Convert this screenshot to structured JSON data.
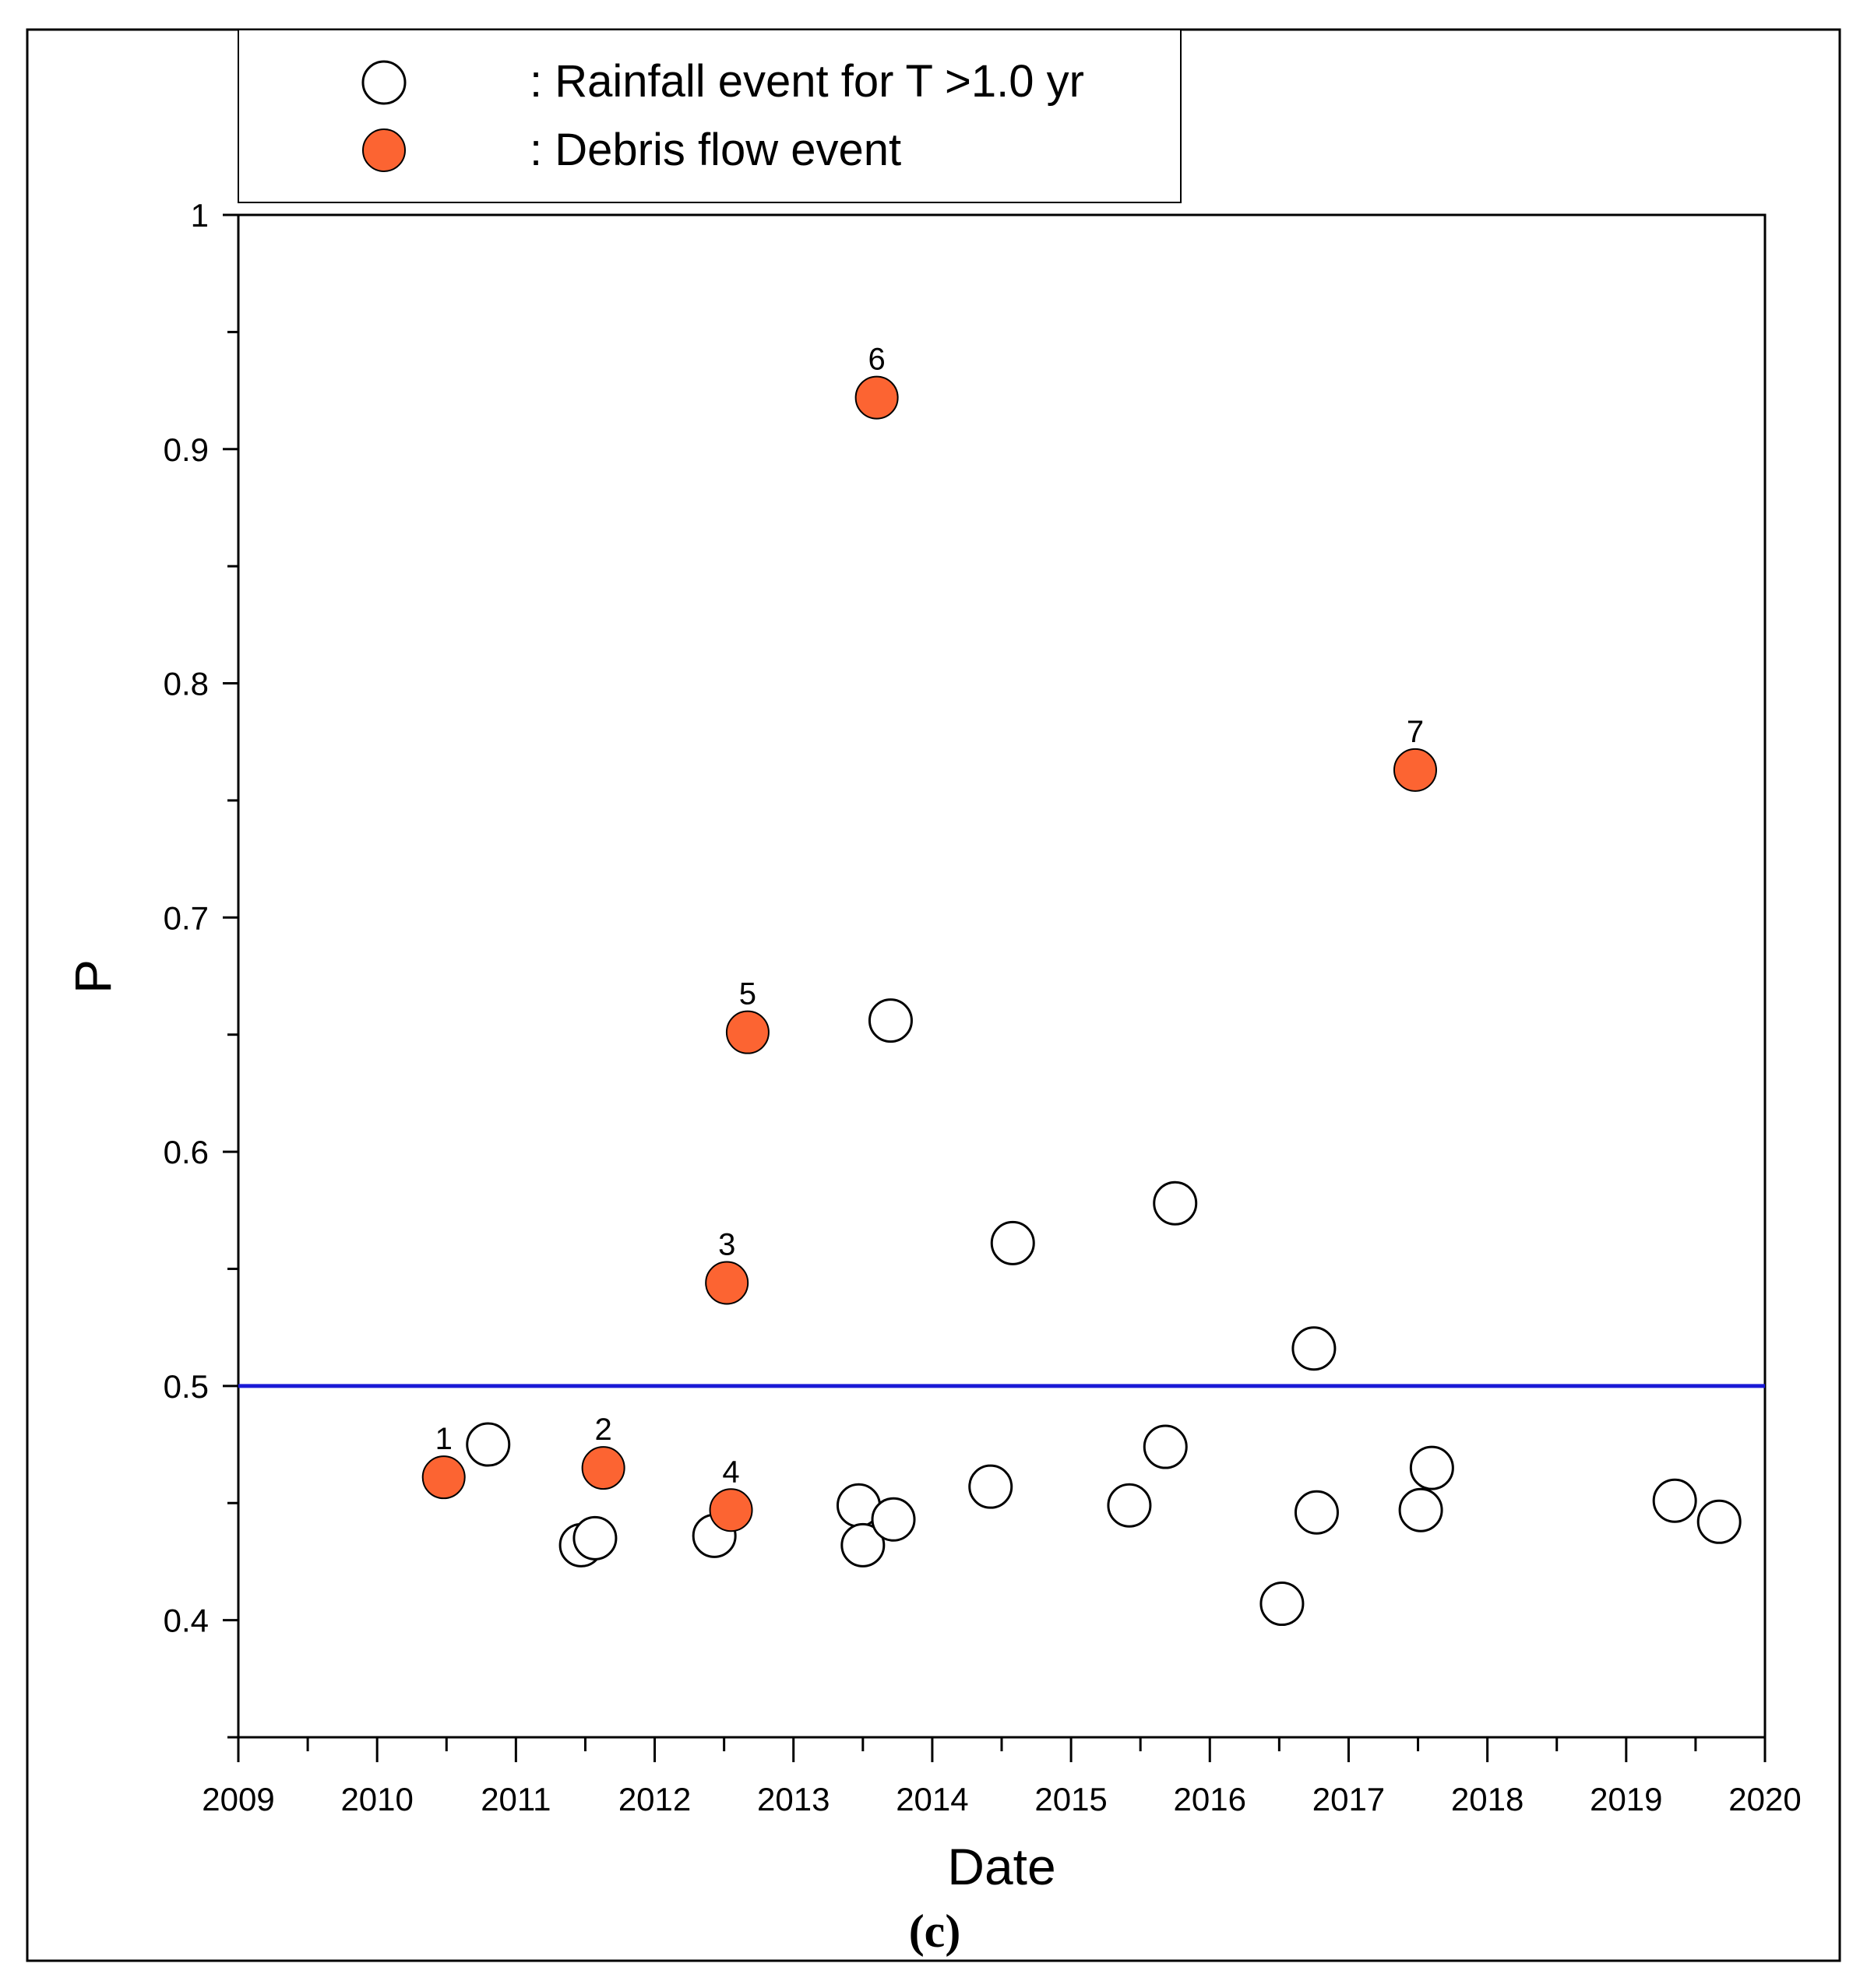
{
  "chart_data": {
    "type": "scatter",
    "panel_label": "(c)",
    "xlabel": "Date",
    "ylabel": "P",
    "xlim": [
      2009,
      2020
    ],
    "ylim": [
      0.35,
      1.0
    ],
    "x_ticks": [
      2009,
      2010,
      2011,
      2012,
      2013,
      2014,
      2015,
      2016,
      2017,
      2018,
      2019,
      2020
    ],
    "x_tick_labels": [
      "2009",
      "2010",
      "2011",
      "2012",
      "2013",
      "2014",
      "2015",
      "2016",
      "2017",
      "2018",
      "2019",
      "2020"
    ],
    "y_ticks": [
      0.4,
      0.5,
      0.6,
      0.7,
      0.8,
      0.9,
      1.0
    ],
    "y_tick_labels": [
      "0.4",
      "0.5",
      "0.6",
      "0.7",
      "0.8",
      "0.9",
      "1"
    ],
    "threshold": {
      "y": 0.5,
      "color": "#1a1ad6"
    },
    "legend": {
      "position": "top-left, above plot",
      "entries": [
        {
          "marker": "open-circle",
          "label": ": Rainfall event for  T >1.0 yr"
        },
        {
          "marker": "filled-circle",
          "label": ": Debris flow event"
        }
      ]
    },
    "series": [
      {
        "name": "Rainfall event for T >1.0 yr",
        "marker": "open-circle",
        "color": "#ffffff",
        "points": [
          {
            "x": 2010.8,
            "y": 0.475
          },
          {
            "x": 2011.47,
            "y": 0.432
          },
          {
            "x": 2011.57,
            "y": 0.435
          },
          {
            "x": 2012.43,
            "y": 0.436
          },
          {
            "x": 2013.47,
            "y": 0.449
          },
          {
            "x": 2013.5,
            "y": 0.432
          },
          {
            "x": 2013.7,
            "y": 0.656
          },
          {
            "x": 2013.72,
            "y": 0.443
          },
          {
            "x": 2014.42,
            "y": 0.457
          },
          {
            "x": 2014.58,
            "y": 0.561
          },
          {
            "x": 2015.42,
            "y": 0.449
          },
          {
            "x": 2015.68,
            "y": 0.474
          },
          {
            "x": 2015.75,
            "y": 0.578
          },
          {
            "x": 2016.52,
            "y": 0.407
          },
          {
            "x": 2016.75,
            "y": 0.516
          },
          {
            "x": 2016.77,
            "y": 0.446
          },
          {
            "x": 2017.52,
            "y": 0.447
          },
          {
            "x": 2017.6,
            "y": 0.465
          },
          {
            "x": 2019.35,
            "y": 0.451
          },
          {
            "x": 2019.67,
            "y": 0.442
          }
        ]
      },
      {
        "name": "Debris flow event",
        "marker": "filled-circle",
        "color": "#fc6432",
        "points": [
          {
            "x": 2010.48,
            "y": 0.461,
            "label": "1"
          },
          {
            "x": 2011.63,
            "y": 0.465,
            "label": "2"
          },
          {
            "x": 2012.52,
            "y": 0.544,
            "label": "3"
          },
          {
            "x": 2012.55,
            "y": 0.447,
            "label": "4"
          },
          {
            "x": 2012.67,
            "y": 0.651,
            "label": "5"
          },
          {
            "x": 2013.6,
            "y": 0.922,
            "label": "6"
          },
          {
            "x": 2017.48,
            "y": 0.763,
            "label": "7"
          }
        ]
      }
    ]
  }
}
